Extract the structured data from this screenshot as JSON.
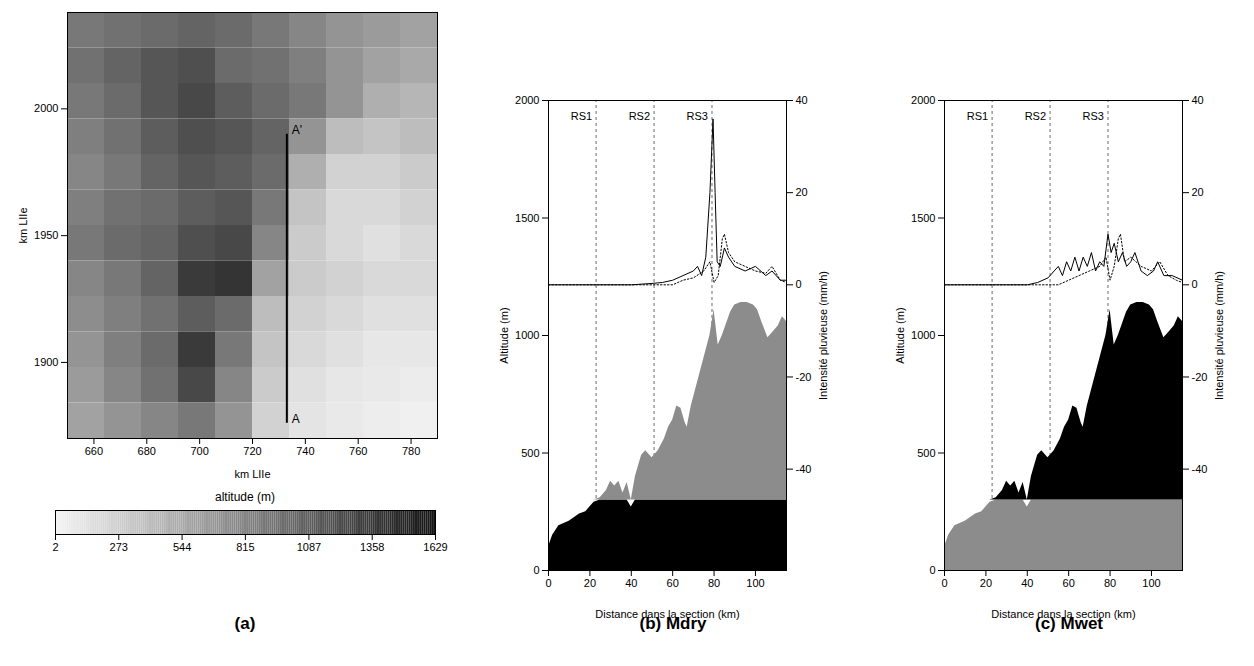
{
  "chart_data": [
    {
      "type": "heatmap",
      "title": "(a)",
      "xlabel": "km LIIe",
      "ylabel": "km LIIe",
      "xlim": [
        650,
        790
      ],
      "ylim": [
        1870,
        2038
      ],
      "xticks": [
        660,
        680,
        700,
        720,
        740,
        760,
        780
      ],
      "yticks": [
        1900,
        1950,
        2000
      ],
      "x": [
        657,
        671,
        685,
        699,
        713,
        727,
        741,
        755,
        769,
        783
      ],
      "y": [
        2031,
        2017,
        2003,
        1989,
        1975,
        1961,
        1947,
        1933,
        1919,
        1905,
        1891,
        1877
      ],
      "z": [
        [
          900,
          950,
          1000,
          1050,
          1000,
          900,
          800,
          700,
          650,
          600
        ],
        [
          950,
          1050,
          1150,
          1200,
          1000,
          950,
          850,
          700,
          600,
          550
        ],
        [
          900,
          1000,
          1150,
          1250,
          1100,
          1000,
          900,
          700,
          500,
          450
        ],
        [
          850,
          950,
          1100,
          1200,
          1150,
          1050,
          700,
          400,
          350,
          400
        ],
        [
          800,
          900,
          1050,
          1150,
          1100,
          1000,
          500,
          250,
          250,
          300
        ],
        [
          850,
          950,
          1000,
          1100,
          1150,
          900,
          350,
          200,
          200,
          250
        ],
        [
          900,
          1000,
          1050,
          1200,
          1250,
          800,
          300,
          200,
          150,
          200
        ],
        [
          800,
          900,
          1050,
          1350,
          1400,
          600,
          300,
          250,
          200,
          200
        ],
        [
          750,
          850,
          950,
          1100,
          1000,
          400,
          250,
          200,
          150,
          150
        ],
        [
          700,
          850,
          1000,
          1350,
          900,
          350,
          200,
          150,
          100,
          100
        ],
        [
          650,
          800,
          950,
          1250,
          800,
          300,
          150,
          100,
          80,
          60
        ],
        [
          600,
          700,
          800,
          900,
          700,
          250,
          120,
          80,
          50,
          30
        ]
      ],
      "colors": [
        "#f4f4f4",
        "#141414"
      ],
      "colorbar": {
        "label": "altitude (m)",
        "range": [
          2,
          1629
        ],
        "ticks": [
          2,
          273,
          544,
          815,
          1087,
          1358,
          1629
        ]
      },
      "section": {
        "x": 733,
        "y": [
          1876,
          1990
        ],
        "labels": [
          "A",
          "A'"
        ]
      }
    },
    {
      "type": "line",
      "title": "(b) Mdry",
      "xlabel": "Distance dans la section (km)",
      "ylabel": "Altitude (m)",
      "y2label": "Intensité pluvieuse (mm/h)",
      "xlim": [
        0,
        115
      ],
      "xticks": [
        0,
        20,
        40,
        60,
        80,
        100
      ],
      "ylim": [
        0,
        2000
      ],
      "yticks": [
        0,
        500,
        1000,
        1500,
        2000
      ],
      "y2lim": [
        -62,
        40
      ],
      "y2ticks": [
        -40,
        -20,
        0,
        20,
        40
      ],
      "terrain": {
        "x": [
          0,
          2,
          5,
          10,
          15,
          18,
          22,
          25,
          28,
          30,
          32,
          34,
          36,
          38,
          40,
          42,
          45,
          47,
          50,
          53,
          56,
          58,
          60,
          62,
          64,
          66,
          67,
          69,
          72,
          75,
          78,
          80,
          82,
          84,
          86,
          88,
          90,
          93,
          96,
          99,
          101,
          103,
          106,
          108,
          111,
          113,
          115
        ],
        "values": [
          100,
          150,
          190,
          210,
          240,
          250,
          290,
          310,
          340,
          380,
          360,
          380,
          330,
          375,
          270,
          400,
          490,
          510,
          480,
          510,
          560,
          610,
          640,
          700,
          690,
          630,
          610,
          700,
          800,
          900,
          1000,
          1110,
          960,
          1000,
          1050,
          1100,
          1130,
          1140,
          1140,
          1130,
          1110,
          1060,
          990,
          1010,
          1040,
          1080,
          1060
        ],
        "split": 300
      },
      "colors": [
        "#000000",
        "#8c8c8c"
      ],
      "series": [
        {
          "axis": "y2",
          "color": "#000000",
          "line_style": "solid",
          "x": [
            0,
            40,
            50,
            55,
            60,
            65,
            70,
            72,
            74,
            76,
            78,
            79.5,
            80.5,
            81.5,
            83,
            85,
            87,
            90,
            95,
            100,
            105,
            108,
            112,
            115
          ],
          "values": [
            0,
            0,
            0.3,
            0.5,
            1,
            2,
            3,
            4,
            2,
            6,
            20,
            36,
            20,
            5,
            4,
            8,
            6,
            4,
            3,
            4,
            2,
            3,
            1,
            1
          ]
        },
        {
          "axis": "y2",
          "color": "#000000",
          "line_style": "dotted",
          "x": [
            0,
            60,
            65,
            70,
            75,
            78,
            80,
            82,
            84,
            85,
            87,
            90,
            95,
            100,
            105,
            108,
            112,
            115
          ],
          "values": [
            0,
            0,
            1,
            1.5,
            3,
            5,
            0.5,
            2,
            10,
            11,
            7,
            5,
            4,
            3,
            2.5,
            4,
            1,
            0.5
          ]
        }
      ],
      "annotations": [
        {
          "x": 23,
          "label": "RS1"
        },
        {
          "x": 51,
          "label": "RS2"
        },
        {
          "x": 79,
          "label": "RS3"
        }
      ]
    },
    {
      "type": "line",
      "title": "(c) Mwet",
      "xlabel": "Distance dans la section (km)",
      "ylabel": "Altitude (m)",
      "y2label": "Intensité pluvieuse (mm/h)",
      "xlim": [
        0,
        115
      ],
      "xticks": [
        0,
        20,
        40,
        60,
        80,
        100
      ],
      "ylim": [
        0,
        2000
      ],
      "yticks": [
        0,
        500,
        1000,
        1500,
        2000
      ],
      "y2lim": [
        -62,
        40
      ],
      "y2ticks": [
        -40,
        -20,
        0,
        20,
        40
      ],
      "terrain": {
        "x": [
          0,
          2,
          5,
          10,
          15,
          18,
          22,
          25,
          28,
          30,
          32,
          34,
          36,
          38,
          40,
          42,
          45,
          47,
          50,
          53,
          56,
          58,
          60,
          62,
          64,
          66,
          67,
          69,
          72,
          75,
          78,
          80,
          82,
          84,
          86,
          88,
          90,
          93,
          96,
          99,
          101,
          103,
          106,
          108,
          111,
          113,
          115
        ],
        "values": [
          100,
          150,
          190,
          210,
          240,
          250,
          290,
          310,
          340,
          380,
          360,
          380,
          330,
          375,
          270,
          400,
          490,
          510,
          480,
          510,
          560,
          610,
          640,
          700,
          690,
          630,
          610,
          700,
          800,
          900,
          1000,
          1110,
          960,
          1000,
          1050,
          1100,
          1130,
          1140,
          1140,
          1130,
          1110,
          1060,
          990,
          1010,
          1040,
          1080,
          1060
        ],
        "split": 300
      },
      "colors": [
        "#8c8c8c",
        "#000000"
      ],
      "series": [
        {
          "axis": "y2",
          "color": "#000000",
          "line_style": "solid",
          "x": [
            0,
            40,
            45,
            50,
            53,
            55,
            57,
            59,
            61,
            63,
            65,
            67,
            69,
            71,
            73,
            75,
            77,
            79,
            80.5,
            82,
            84,
            86,
            88,
            90,
            92,
            95,
            98,
            101,
            103,
            106,
            110,
            115
          ],
          "values": [
            0,
            0,
            0.5,
            1.5,
            3,
            4,
            2,
            5,
            3,
            6,
            3,
            6,
            4,
            7,
            3,
            5,
            4,
            11,
            7,
            9,
            5,
            7,
            4,
            5,
            7,
            3,
            2,
            3,
            5,
            2,
            2,
            1
          ]
        },
        {
          "axis": "y2",
          "color": "#000000",
          "line_style": "dotted",
          "x": [
            0,
            55,
            60,
            65,
            70,
            75,
            78,
            80,
            82,
            84,
            85,
            87,
            90,
            95,
            100,
            104,
            108,
            112,
            115
          ],
          "values": [
            0,
            0,
            1,
            2,
            3,
            4,
            6,
            1,
            4,
            10,
            11,
            5,
            6,
            4,
            3,
            5,
            2,
            1,
            0.5
          ]
        }
      ],
      "annotations": [
        {
          "x": 23,
          "label": "RS1"
        },
        {
          "x": 51,
          "label": "RS2"
        },
        {
          "x": 79,
          "label": "RS3"
        }
      ]
    }
  ]
}
